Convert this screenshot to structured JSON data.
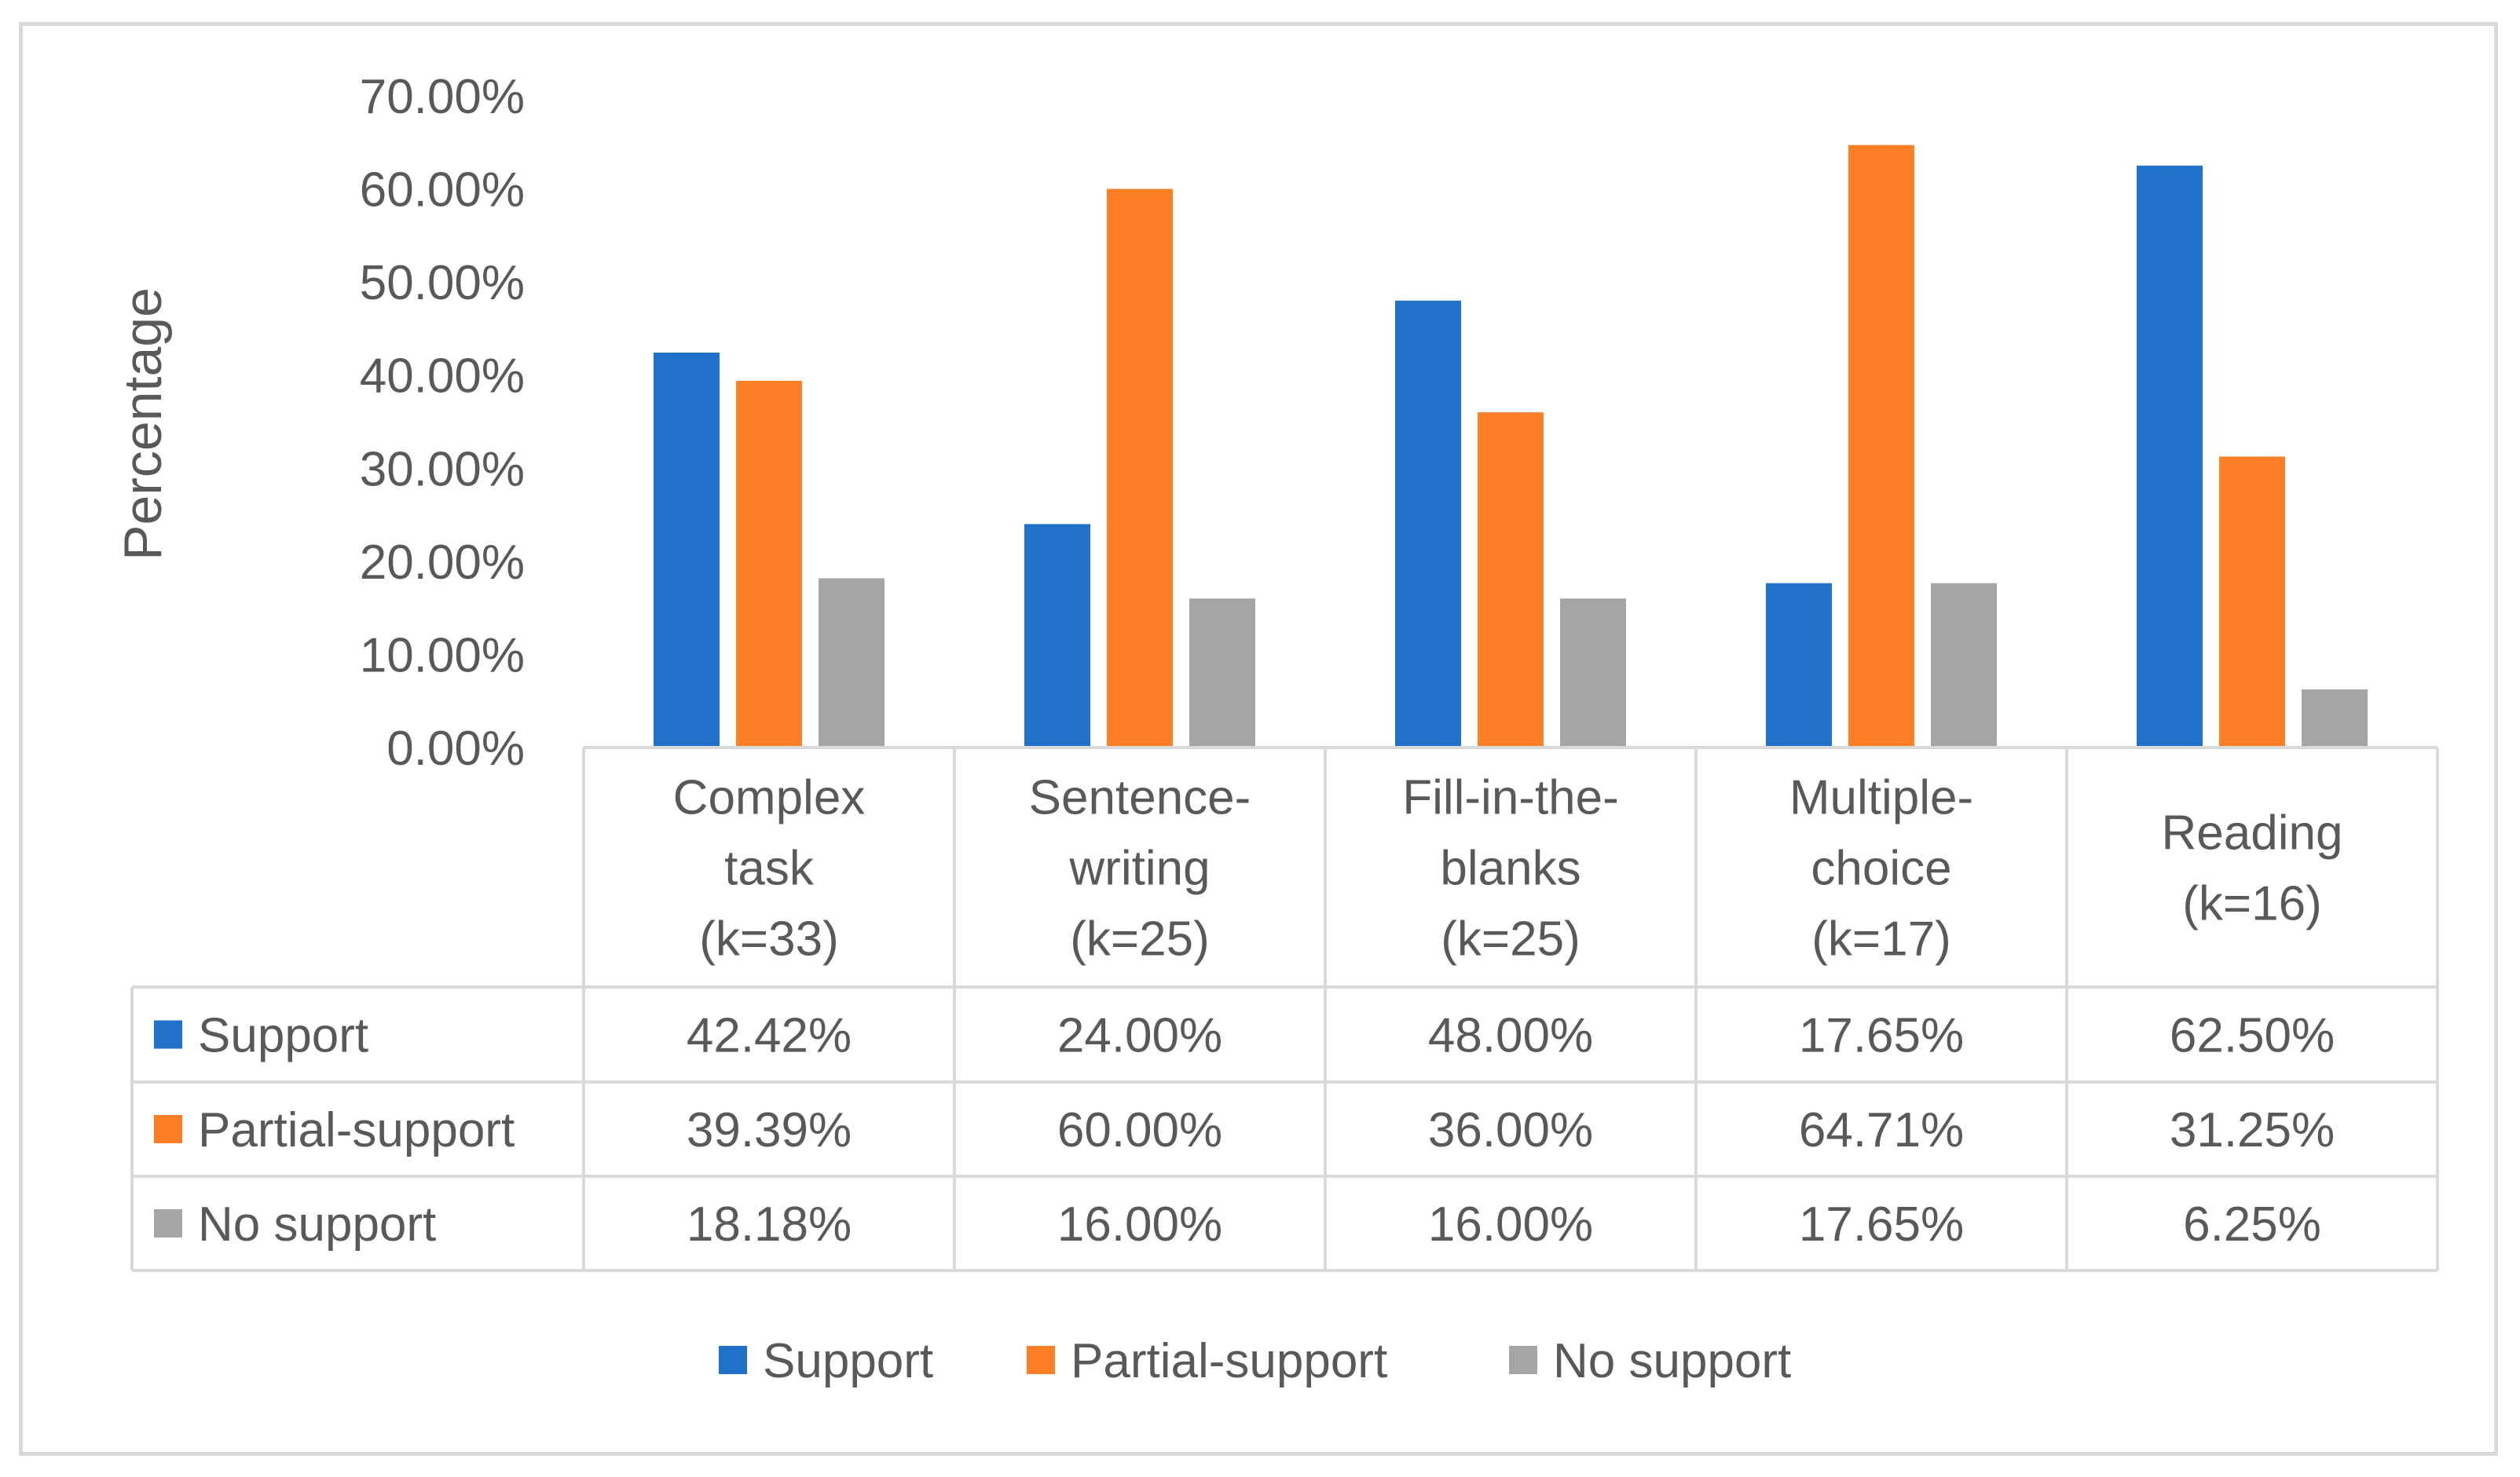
{
  "chart_data": {
    "type": "bar",
    "title": "",
    "xlabel": "",
    "ylabel": "Percentage",
    "ylim": [
      0,
      70
    ],
    "yticks": [
      "0.00%",
      "10.00%",
      "20.00%",
      "30.00%",
      "40.00%",
      "50.00%",
      "60.00%",
      "70.00%"
    ],
    "grid": false,
    "legend_position": "bottom",
    "categories": [
      [
        "Complex",
        "task",
        "(k=33)"
      ],
      [
        "Sentence-",
        "writing",
        "(k=25)"
      ],
      [
        "Fill-in-the-",
        "blanks",
        "(k=25)"
      ],
      [
        "Multiple-",
        "choice",
        "(k=17)"
      ],
      [
        "Reading",
        "(k=16)"
      ]
    ],
    "series": [
      {
        "name": "Support",
        "color": "#1f72c8",
        "values": [
          42.42,
          24.0,
          48.0,
          17.65,
          62.5
        ],
        "labels": [
          "42.42%",
          "24.00%",
          "48.00%",
          "17.65%",
          "62.50%"
        ]
      },
      {
        "name": "Partial-support",
        "color": "#ff7f27",
        "values": [
          39.39,
          60.0,
          36.0,
          64.71,
          31.25
        ],
        "labels": [
          "39.39%",
          "60.00%",
          "36.00%",
          "64.71%",
          "31.25%"
        ]
      },
      {
        "name": "No support",
        "color": "#a5a5a5",
        "values": [
          18.18,
          16.0,
          16.0,
          17.65,
          6.25
        ],
        "labels": [
          "18.18%",
          "16.00%",
          "16.00%",
          "17.65%",
          "6.25%"
        ]
      }
    ]
  }
}
